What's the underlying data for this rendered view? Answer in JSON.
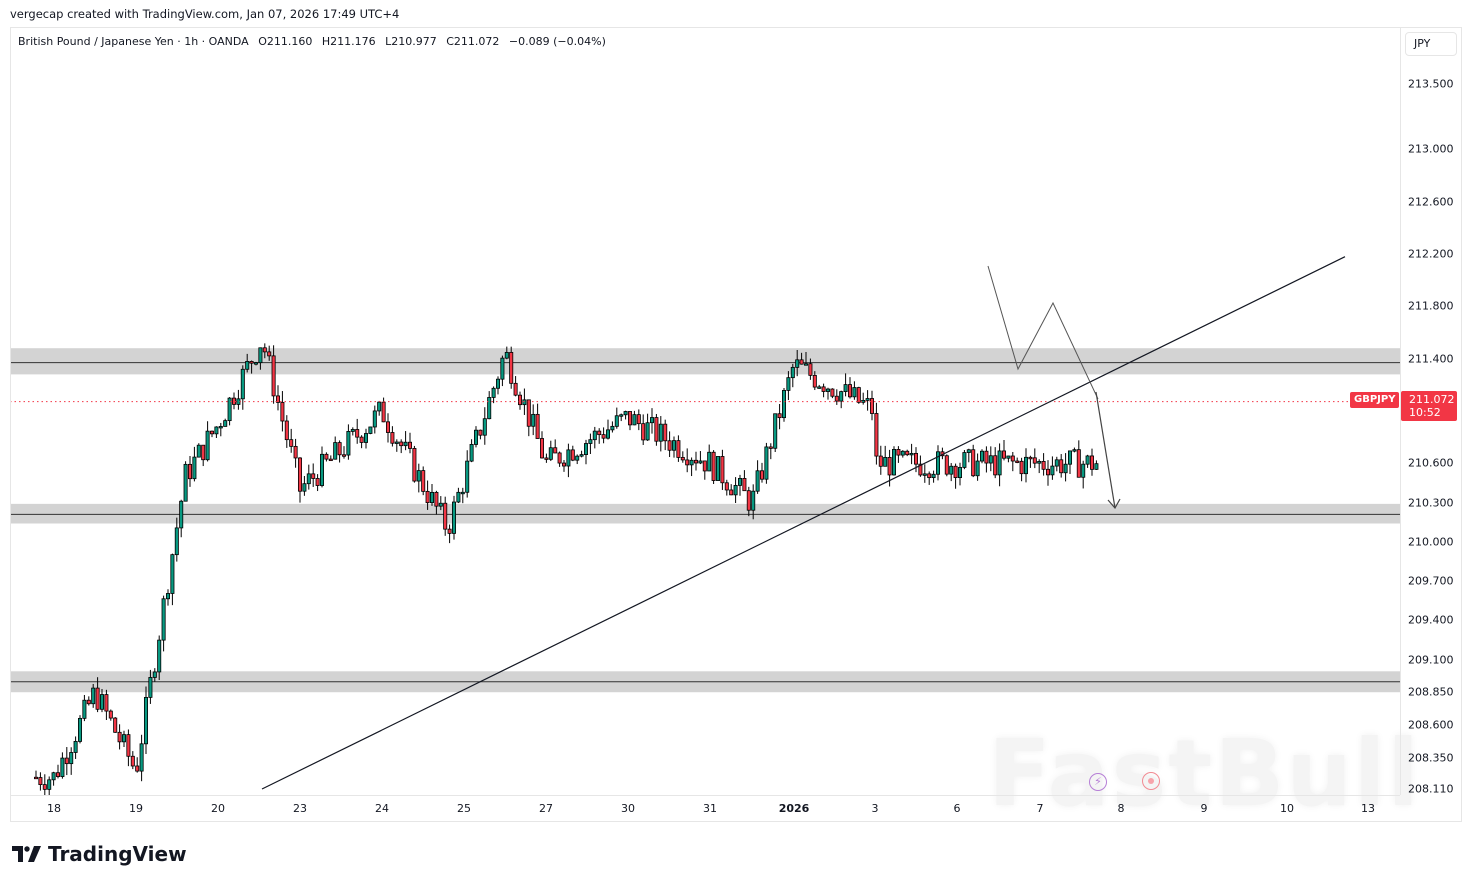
{
  "credit": "vergecap created with TradingView.com, Jan 07, 2026 17:49 UTC+4",
  "legend": {
    "symbol_name": "British Pound / Japanese Yen · 1h · OANDA",
    "open": "O211.160",
    "high": "H211.176",
    "low": "L210.977",
    "close": "C211.072",
    "change": "−0.089 (−0.04%)"
  },
  "price_axis": {
    "currency": "JPY",
    "ticks": [
      "213.500",
      "213.000",
      "212.600",
      "212.200",
      "211.800",
      "211.400",
      "210.600",
      "210.300",
      "210.000",
      "209.700",
      "209.400",
      "209.100",
      "208.850",
      "208.600",
      "208.350",
      "208.110"
    ]
  },
  "time_axis": {
    "ticks": [
      "18",
      "19",
      "20",
      "23",
      "24",
      "25",
      "27",
      "30",
      "31",
      "2026",
      "3",
      "6",
      "7",
      "8",
      "9",
      "10",
      "13"
    ]
  },
  "last_price": {
    "symbol": "GBPJPY",
    "price": "211.072",
    "countdown": "10:52",
    "color": "#f23645"
  },
  "branding": {
    "logo_text": "TradingView",
    "watermark": "FastBull"
  },
  "colors": {
    "up": "#089981",
    "down": "#f23645",
    "zone": "#d3d3d3",
    "line": "#131722"
  },
  "chart_data": {
    "type": "candlestick",
    "title": "British Pound / Japanese Yen · 1h · OANDA",
    "symbol": "GBPJPY",
    "timeframe": "1h",
    "xlabel": "",
    "ylabel": "JPY",
    "ylim": [
      208.05,
      213.9
    ],
    "x_ticks": [
      "18",
      "19",
      "20",
      "23",
      "24",
      "25",
      "27",
      "30",
      "31",
      "2026",
      "3",
      "6",
      "7",
      "8",
      "9",
      "10",
      "13"
    ],
    "y_ticks": [
      213.5,
      213.0,
      212.6,
      212.2,
      211.8,
      211.4,
      210.6,
      210.3,
      210.0,
      209.7,
      209.4,
      209.1,
      208.85,
      208.6,
      208.35,
      208.11
    ],
    "ohlc_last": {
      "open": 211.16,
      "high": 211.176,
      "low": 210.977,
      "close": 211.072,
      "change": -0.089,
      "change_pct": -0.04
    },
    "approx_path": [
      {
        "x": "18",
        "price": 208.2
      },
      {
        "x": "18.5",
        "price": 208.85
      },
      {
        "x": "19",
        "price": 208.25
      },
      {
        "x": "19.6",
        "price": 210.5
      },
      {
        "x": "20",
        "price": 210.9
      },
      {
        "x": "22",
        "price": 211.55
      },
      {
        "x": "23",
        "price": 210.4
      },
      {
        "x": "24",
        "price": 211.0
      },
      {
        "x": "24.8",
        "price": 210.1
      },
      {
        "x": "25.5",
        "price": 211.45
      },
      {
        "x": "27",
        "price": 210.6
      },
      {
        "x": "30",
        "price": 210.95
      },
      {
        "x": "31",
        "price": 210.6
      },
      {
        "x": "31.5",
        "price": 210.3
      },
      {
        "x": "2026",
        "price": 211.35
      },
      {
        "x": "3",
        "price": 211.0
      },
      {
        "x": "5.5",
        "price": 210.6
      },
      {
        "x": "6",
        "price": 212.0
      },
      {
        "x": "6.5",
        "price": 211.9
      },
      {
        "x": "7",
        "price": 211.25
      },
      {
        "x": "7.3",
        "price": 211.7
      },
      {
        "x": "7.6",
        "price": 211.07
      }
    ],
    "annotations": [
      {
        "type": "zone",
        "label": "resistance",
        "level": 211.37,
        "range": [
          211.28,
          211.48
        ]
      },
      {
        "type": "zone",
        "label": "support",
        "level": 210.21,
        "range": [
          210.14,
          210.29
        ]
      },
      {
        "type": "zone",
        "label": "support",
        "level": 208.93,
        "range": [
          208.85,
          209.01
        ]
      },
      {
        "type": "trendline",
        "label": "ascending trendline",
        "from": {
          "x": "22",
          "price": 208.11
        },
        "to": {
          "x": "13",
          "price": 212.18
        }
      },
      {
        "type": "arrow",
        "label": "projected drop",
        "from": {
          "x": "7.7",
          "price": 211.0
        },
        "to": {
          "x": "7.9",
          "price": 210.22
        }
      },
      {
        "type": "zigzag",
        "label": "head and shoulders pattern",
        "points": [
          [
            6.4,
            212.1
          ],
          [
            7.0,
            211.25
          ],
          [
            7.3,
            211.75
          ],
          [
            7.55,
            211.05
          ]
        ]
      },
      {
        "type": "hline",
        "label": "last price",
        "level": 211.072,
        "style": "dotted",
        "color": "#f23645"
      }
    ]
  }
}
